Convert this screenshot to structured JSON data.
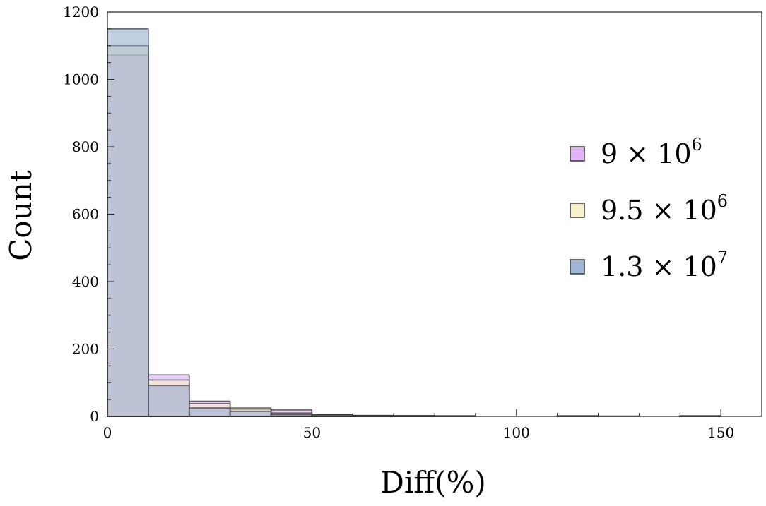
{
  "chart_data": {
    "type": "histogram",
    "xlabel": "Diff(%)",
    "ylabel": "Count",
    "xlim": [
      0,
      160
    ],
    "ylim": [
      0,
      1200
    ],
    "x_ticks": [
      0,
      50,
      100,
      150
    ],
    "y_ticks": [
      0,
      200,
      400,
      600,
      800,
      1000,
      1200
    ],
    "bin_width": 10,
    "bin_edges": [
      0,
      10,
      20,
      30,
      40,
      50,
      60,
      70,
      80,
      90,
      100,
      110,
      120,
      130,
      140,
      150
    ],
    "legend_position": "right",
    "series": [
      {
        "name": "9 × 10^6",
        "label_base": "9 × 10",
        "label_exp": "6",
        "color": "#d9a8f5",
        "values": [
          1072,
          123,
          45,
          20,
          19,
          5,
          3,
          2,
          1,
          0,
          0,
          1,
          0,
          0,
          1
        ]
      },
      {
        "name": "9.5 × 10^6",
        "label_base": "9.5 × 10",
        "label_exp": "6",
        "color": "#f8efc4",
        "values": [
          1100,
          108,
          38,
          25,
          10,
          5,
          2,
          2,
          1,
          0,
          0,
          1,
          0,
          0,
          1
        ]
      },
      {
        "name": "1.3 × 10^7",
        "label_base": "1.3 × 10",
        "label_exp": "7",
        "color": "#90a8cc",
        "values": [
          1150,
          92,
          25,
          15,
          5,
          4,
          2,
          2,
          2,
          0,
          0,
          2,
          1,
          0,
          2
        ]
      }
    ]
  }
}
